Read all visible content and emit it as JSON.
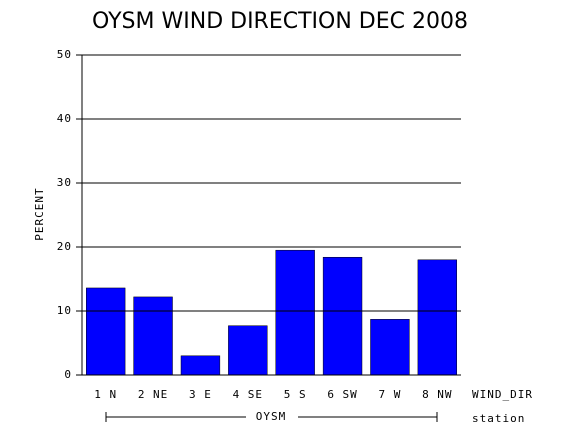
{
  "chart_data": {
    "type": "bar",
    "title": "OYSM WIND DIRECTION DEC 2008",
    "y_label": "PERCENT",
    "x_label": "WIND_DIR",
    "group_label": "OYSM",
    "group_axis_label": "station",
    "categories": [
      "1 N",
      "2 NE",
      "3 E",
      "4 SE",
      "5 S",
      "6 SW",
      "7 W",
      "8 NW"
    ],
    "values": [
      13.6,
      12.2,
      3.0,
      7.7,
      19.5,
      18.4,
      8.7,
      18.0
    ],
    "color": "#0000ff",
    "ylim": [
      0,
      50
    ],
    "yticks": [
      0,
      10,
      20,
      30,
      40,
      50
    ],
    "grid": true
  }
}
